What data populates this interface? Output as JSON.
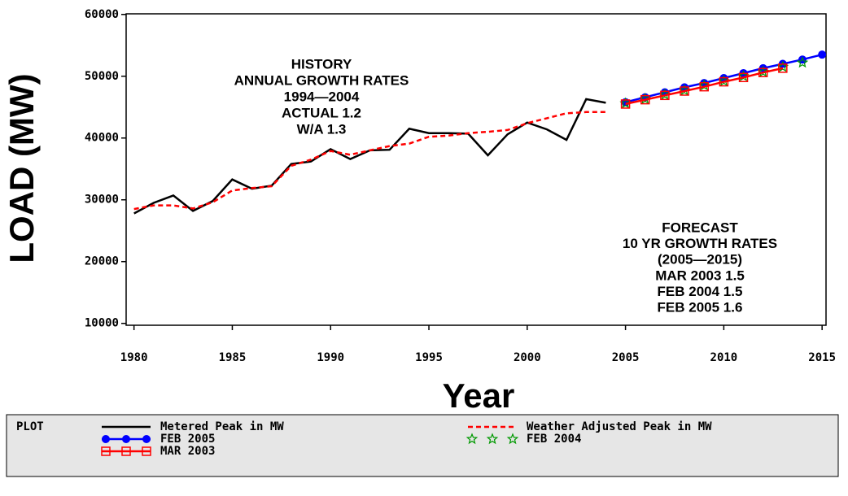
{
  "chart_data": {
    "type": "line",
    "x_label": "Year",
    "y_label": "LOAD (MW)",
    "xlim": [
      1979.6,
      2015.2
    ],
    "xticks": [
      1980,
      1985,
      1990,
      1995,
      2000,
      2005,
      2010,
      2015
    ],
    "ylim": [
      9700,
      60100
    ],
    "yticks": [
      10000,
      20000,
      30000,
      40000,
      50000,
      60000
    ],
    "grid": false,
    "legend_title": "PLOT",
    "legend_position": "bottom",
    "annotations": [
      {
        "lines": [
          "HISTORY",
          "ANNUAL GROWTH RATES",
          "1994—2004",
          "ACTUAL   1.2",
          "W/A        1.3"
        ]
      },
      {
        "lines": [
          "FORECAST",
          "10 YR GROWTH RATES",
          "(2005—2015)",
          "MAR 2003   1.5",
          "FEB 2004    1.5",
          "FEB 2005    1.6"
        ]
      }
    ],
    "series": [
      {
        "name": "Metered Peak in MW",
        "color": "#000000",
        "style": "solid",
        "marker": null,
        "x": [
          1980,
          1981,
          1982,
          1983,
          1984,
          1985,
          1986,
          1987,
          1988,
          1989,
          1990,
          1991,
          1992,
          1993,
          1994,
          1995,
          1996,
          1997,
          1998,
          1999,
          2000,
          2001,
          2002,
          2003,
          2004
        ],
        "values": [
          27800,
          29500,
          30700,
          28200,
          29800,
          33300,
          31800,
          32300,
          35800,
          36200,
          38200,
          36600,
          38000,
          38100,
          41500,
          40800,
          40800,
          40700,
          37200,
          40600,
          42500,
          41400,
          39700,
          46300,
          45700
        ]
      },
      {
        "name": "Weather Adjusted Peak in MW",
        "color": "#ff0000",
        "style": "dashed",
        "marker": null,
        "x": [
          1980,
          1981,
          1982,
          1983,
          1984,
          1985,
          1986,
          1987,
          1988,
          1989,
          1990,
          1991,
          1992,
          1993,
          1994,
          1995,
          1996,
          1997,
          1998,
          1999,
          2000,
          2001,
          2002,
          2003,
          2004
        ],
        "values": [
          28500,
          29100,
          29100,
          28600,
          29600,
          31500,
          31900,
          32200,
          35500,
          36500,
          37900,
          37300,
          38000,
          38700,
          39100,
          40200,
          40400,
          40800,
          41000,
          41300,
          42400,
          43200,
          44000,
          44200,
          44200
        ]
      },
      {
        "name": "FEB 2005",
        "color": "#0000ff",
        "style": "solid",
        "marker": "circle",
        "x": [
          2005,
          2006,
          2007,
          2008,
          2009,
          2010,
          2011,
          2012,
          2013,
          2014,
          2015
        ],
        "values": [
          45800,
          46600,
          47400,
          48200,
          48900,
          49700,
          50500,
          51300,
          52000,
          52700,
          53500
        ]
      },
      {
        "name": "FEB 2004",
        "color": "#009900",
        "style": "none",
        "marker": "star",
        "x": [
          2005,
          2006,
          2007,
          2008,
          2009,
          2010,
          2011,
          2012,
          2013,
          2014
        ],
        "values": [
          45600,
          46300,
          47000,
          47700,
          48500,
          49200,
          50000,
          50700,
          51500,
          52200
        ]
      },
      {
        "name": "MAR 2003",
        "color": "#ff0000",
        "style": "solid",
        "marker": "square",
        "x": [
          2005,
          2006,
          2007,
          2008,
          2009,
          2010,
          2011,
          2012,
          2013
        ],
        "values": [
          45500,
          46200,
          46900,
          47600,
          48300,
          49100,
          49800,
          50600,
          51300
        ]
      }
    ]
  }
}
